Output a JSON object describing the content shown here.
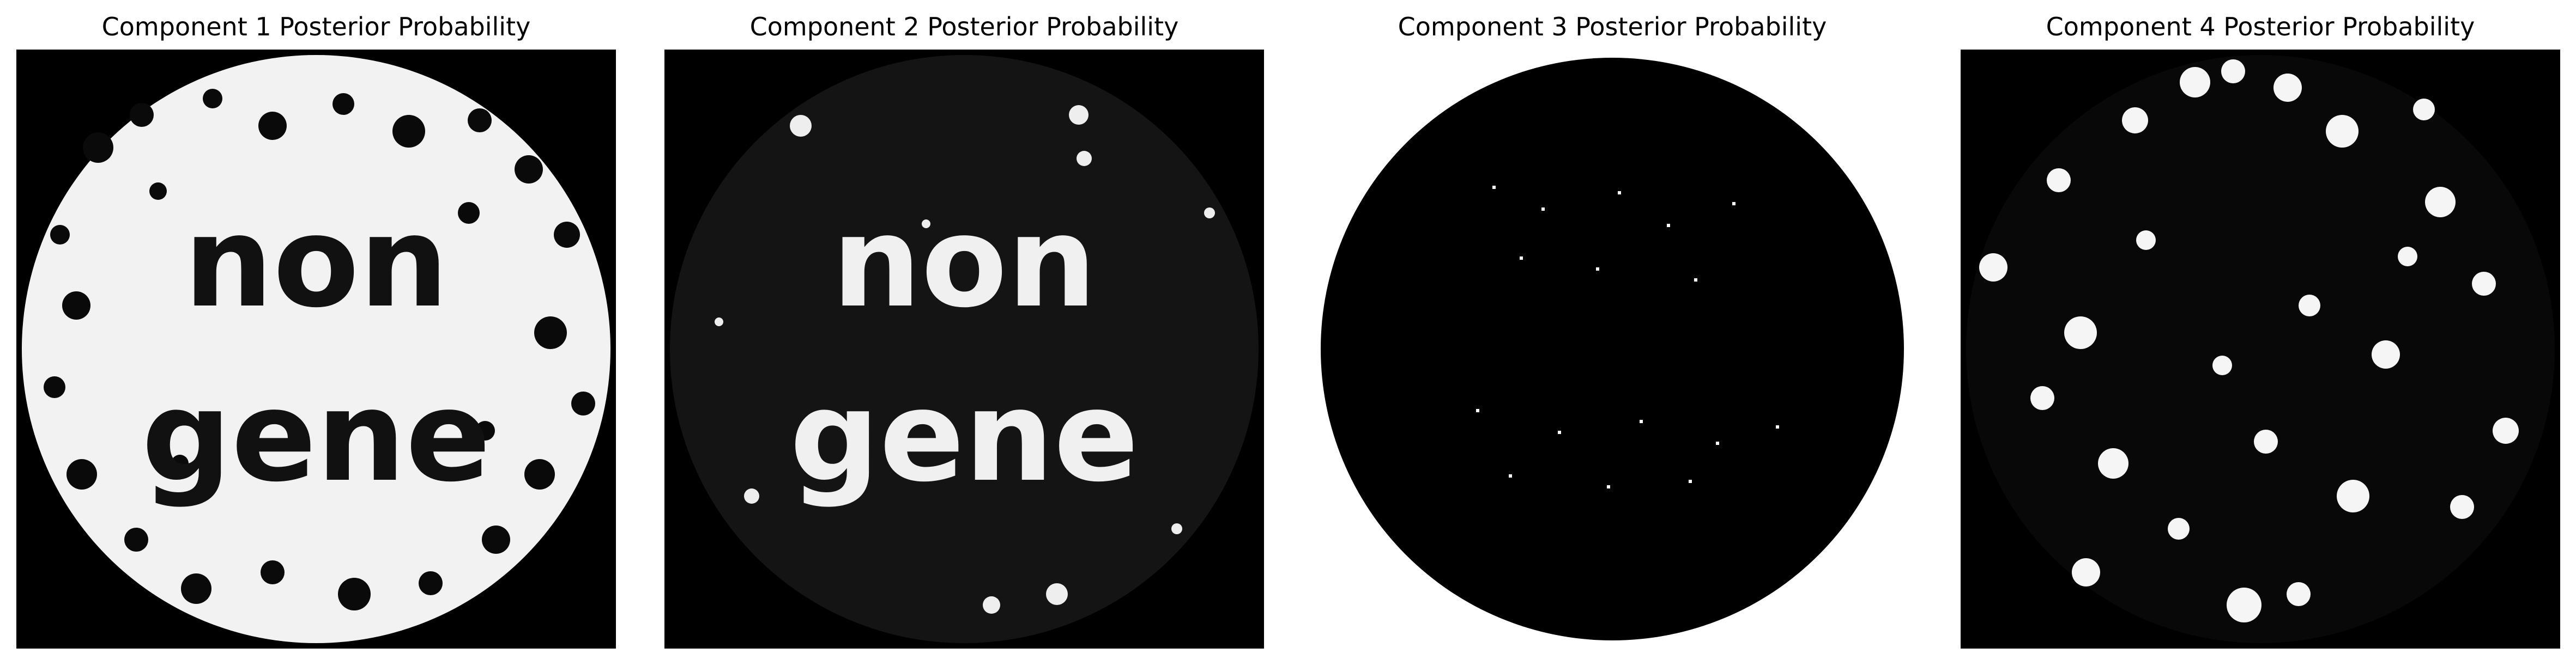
{
  "figure": {
    "panels": [
      {
        "title": "Component 1 Posterior Probability",
        "pattern": "bright-disk-dark-spots",
        "text_in_image": [
          "non",
          "gene"
        ]
      },
      {
        "title": "Component 2 Posterior Probability",
        "pattern": "bright-text-on-dark",
        "text_in_image": [
          "non",
          "gene"
        ]
      },
      {
        "title": "Component 3 Posterior Probability",
        "pattern": "dark-disk-bright-edge",
        "text_in_image": []
      },
      {
        "title": "Component 4 Posterior Probability",
        "pattern": "bright-spots-on-dark",
        "text_in_image": []
      }
    ],
    "colors": {
      "background": "#ffffff",
      "image_dark": "#000000",
      "image_light": "#ffffff",
      "title": "#000000"
    },
    "colormap": "gray"
  }
}
